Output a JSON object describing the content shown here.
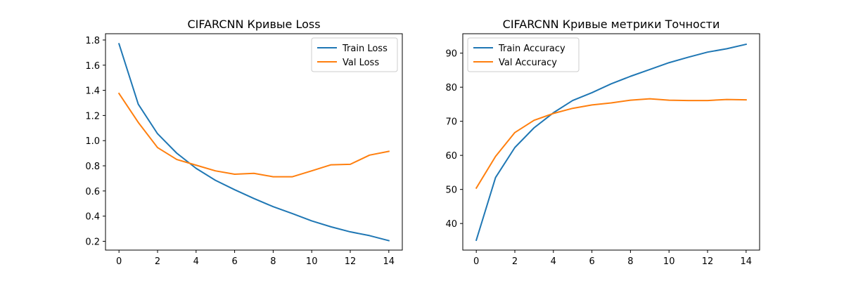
{
  "chart_data": [
    {
      "type": "line",
      "title": "CIFARCNN Кривые Loss",
      "xlabel": "",
      "ylabel": "",
      "x": [
        0,
        1,
        2,
        3,
        4,
        5,
        6,
        7,
        8,
        9,
        10,
        11,
        12,
        13,
        14
      ],
      "xlim": [
        -0.7,
        14.7
      ],
      "ylim": [
        0.13,
        1.85
      ],
      "xticks": [
        0,
        2,
        4,
        6,
        8,
        10,
        12,
        14
      ],
      "yticks": [
        0.2,
        0.4,
        0.6,
        0.8,
        1.0,
        1.2,
        1.4,
        1.6,
        1.8
      ],
      "ytick_labels": [
        "0.2",
        "0.4",
        "0.6",
        "0.8",
        "1.0",
        "1.2",
        "1.4",
        "1.6",
        "1.8"
      ],
      "legend_position": "top-right",
      "grid": false,
      "series": [
        {
          "name": "Train Loss",
          "color": "#1f77b4",
          "values": [
            1.77,
            1.29,
            1.055,
            0.9,
            0.78,
            0.685,
            0.61,
            0.54,
            0.475,
            0.42,
            0.362,
            0.315,
            0.275,
            0.245,
            0.205
          ]
        },
        {
          "name": "Val Loss",
          "color": "#ff7f0e",
          "values": [
            1.375,
            1.145,
            0.945,
            0.85,
            0.805,
            0.76,
            0.733,
            0.74,
            0.713,
            0.713,
            0.76,
            0.808,
            0.812,
            0.885,
            0.915
          ]
        }
      ]
    },
    {
      "type": "line",
      "title": "CIFARCNN Кривые метрики Точности",
      "xlabel": "",
      "ylabel": "",
      "x": [
        0,
        1,
        2,
        3,
        4,
        5,
        6,
        7,
        8,
        9,
        10,
        11,
        12,
        13,
        14
      ],
      "xlim": [
        -0.7,
        14.7
      ],
      "ylim": [
        32.2,
        95.7
      ],
      "xticks": [
        0,
        2,
        4,
        6,
        8,
        10,
        12,
        14
      ],
      "yticks": [
        40,
        50,
        60,
        70,
        80,
        90
      ],
      "ytick_labels": [
        "40",
        "50",
        "60",
        "70",
        "80",
        "90"
      ],
      "legend_position": "top-left",
      "grid": false,
      "series": [
        {
          "name": "Train Accuracy",
          "color": "#1f77b4",
          "values": [
            35.1,
            53.5,
            62.3,
            68.1,
            72.5,
            76.1,
            78.4,
            81.0,
            83.2,
            85.2,
            87.2,
            88.8,
            90.3,
            91.3,
            92.6
          ]
        },
        {
          "name": "Val Accuracy",
          "color": "#ff7f0e",
          "values": [
            50.4,
            59.7,
            66.7,
            70.3,
            72.3,
            73.8,
            74.8,
            75.4,
            76.2,
            76.6,
            76.2,
            76.1,
            76.1,
            76.4,
            76.3
          ]
        }
      ]
    }
  ]
}
